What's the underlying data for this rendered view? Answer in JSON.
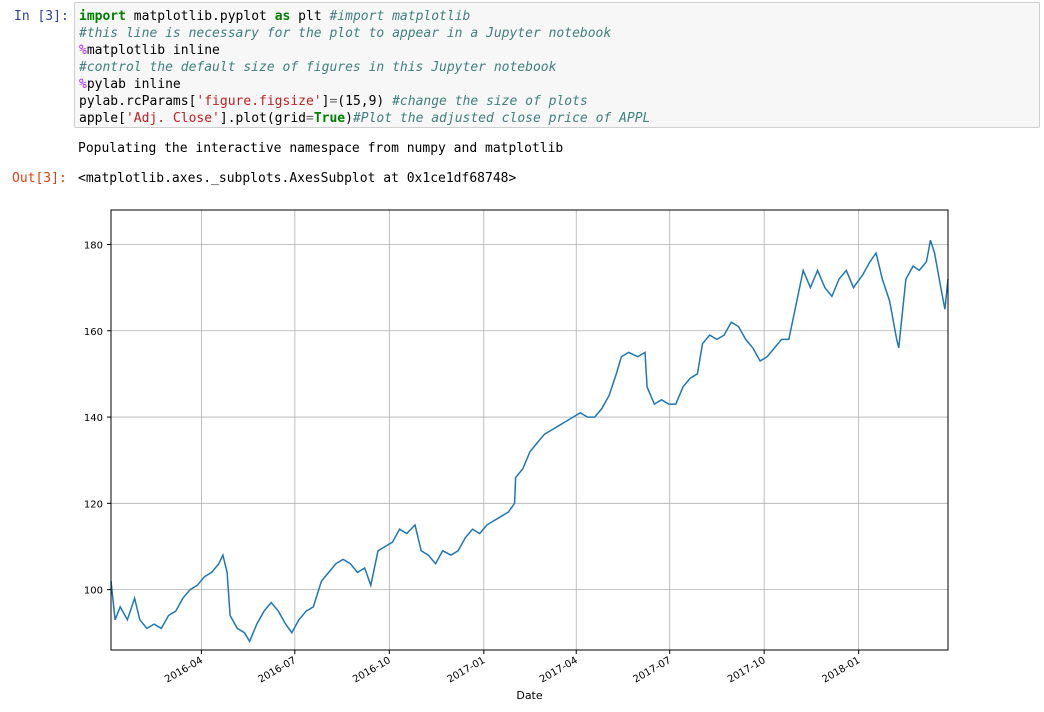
{
  "cells": {
    "in_prompt": "In [3]:",
    "out_prompt": "Out[3]:",
    "code": {
      "line1_kw": "import",
      "line1_mid": " matplotlib.pyplot ",
      "line1_as": "as",
      "line1_end": " plt ",
      "line1_comment": "#import matplotlib",
      "line2_comment": "#this line is necessary for the plot to appear in a Jupyter notebook",
      "line3_magic": "%",
      "line3_rest": "matplotlib inline",
      "line4_comment": "#control the default size of figures in this Jupyter notebook",
      "line5_magic": "%",
      "line5_rest": "pylab inline",
      "line6_a": "pylab.rcParams[",
      "line6_str": "'figure.figsize'",
      "line6_b": "]",
      "line6_eq": "=",
      "line6_c": "(15,9) ",
      "line6_comment": "#change the size of plots",
      "line7_a": "apple[",
      "line7_str": "'Adj. Close'",
      "line7_b": "].plot(grid",
      "line7_eq": "=",
      "line7_kw": "True",
      "line7_c": ")",
      "line7_comment": "#Plot the adjusted close price of APPL"
    },
    "stream_output": "Populating the interactive namespace from numpy and matplotlib",
    "out_repr": "<matplotlib.axes._subplots.AxesSubplot at 0x1ce1df68748>"
  },
  "chart_data": {
    "type": "line",
    "title": "",
    "xlabel": "Date",
    "ylabel": "",
    "grid": true,
    "line_color": "#1f77b4",
    "x_start": "2016-01-04",
    "x_end": "2018-03-29",
    "ylim": [
      86,
      188
    ],
    "yticks": [
      100,
      120,
      140,
      160,
      180
    ],
    "xticks": [
      {
        "label": "2016-04",
        "date": "2016-04-01"
      },
      {
        "label": "2016-07",
        "date": "2016-07-01"
      },
      {
        "label": "2016-10",
        "date": "2016-10-01"
      },
      {
        "label": "2017-01",
        "date": "2017-01-01"
      },
      {
        "label": "2017-04",
        "date": "2017-04-01"
      },
      {
        "label": "2017-07",
        "date": "2017-07-01"
      },
      {
        "label": "2017-10",
        "date": "2017-10-01"
      },
      {
        "label": "2018-01",
        "date": "2018-01-01"
      }
    ],
    "series": [
      {
        "name": "Adj. Close",
        "points": [
          [
            "2016-01-04",
            102
          ],
          [
            "2016-01-08",
            93
          ],
          [
            "2016-01-13",
            96
          ],
          [
            "2016-01-20",
            93
          ],
          [
            "2016-01-27",
            98
          ],
          [
            "2016-02-01",
            93
          ],
          [
            "2016-02-08",
            91
          ],
          [
            "2016-02-15",
            92
          ],
          [
            "2016-02-22",
            91
          ],
          [
            "2016-02-29",
            94
          ],
          [
            "2016-03-07",
            95
          ],
          [
            "2016-03-14",
            98
          ],
          [
            "2016-03-21",
            100
          ],
          [
            "2016-03-28",
            101
          ],
          [
            "2016-04-04",
            103
          ],
          [
            "2016-04-11",
            104
          ],
          [
            "2016-04-18",
            106
          ],
          [
            "2016-04-22",
            108
          ],
          [
            "2016-04-26",
            104
          ],
          [
            "2016-04-29",
            94
          ],
          [
            "2016-05-06",
            91
          ],
          [
            "2016-05-13",
            90
          ],
          [
            "2016-05-18",
            88
          ],
          [
            "2016-05-25",
            92
          ],
          [
            "2016-06-01",
            95
          ],
          [
            "2016-06-08",
            97
          ],
          [
            "2016-06-15",
            95
          ],
          [
            "2016-06-22",
            92
          ],
          [
            "2016-06-28",
            90
          ],
          [
            "2016-07-05",
            93
          ],
          [
            "2016-07-12",
            95
          ],
          [
            "2016-07-19",
            96
          ],
          [
            "2016-07-27",
            102
          ],
          [
            "2016-08-03",
            104
          ],
          [
            "2016-08-10",
            106
          ],
          [
            "2016-08-17",
            107
          ],
          [
            "2016-08-24",
            106
          ],
          [
            "2016-08-31",
            104
          ],
          [
            "2016-09-07",
            105
          ],
          [
            "2016-09-13",
            101
          ],
          [
            "2016-09-20",
            109
          ],
          [
            "2016-09-27",
            110
          ],
          [
            "2016-10-04",
            111
          ],
          [
            "2016-10-11",
            114
          ],
          [
            "2016-10-18",
            113
          ],
          [
            "2016-10-26",
            115
          ],
          [
            "2016-11-01",
            109
          ],
          [
            "2016-11-08",
            108
          ],
          [
            "2016-11-15",
            106
          ],
          [
            "2016-11-22",
            109
          ],
          [
            "2016-11-30",
            108
          ],
          [
            "2016-12-07",
            109
          ],
          [
            "2016-12-14",
            112
          ],
          [
            "2016-12-21",
            114
          ],
          [
            "2016-12-28",
            113
          ],
          [
            "2017-01-04",
            115
          ],
          [
            "2017-01-11",
            116
          ],
          [
            "2017-01-18",
            117
          ],
          [
            "2017-01-25",
            118
          ],
          [
            "2017-01-31",
            120
          ],
          [
            "2017-02-01",
            126
          ],
          [
            "2017-02-08",
            128
          ],
          [
            "2017-02-15",
            132
          ],
          [
            "2017-02-22",
            134
          ],
          [
            "2017-03-01",
            136
          ],
          [
            "2017-03-08",
            137
          ],
          [
            "2017-03-15",
            138
          ],
          [
            "2017-03-22",
            139
          ],
          [
            "2017-03-29",
            140
          ],
          [
            "2017-04-05",
            141
          ],
          [
            "2017-04-12",
            140
          ],
          [
            "2017-04-19",
            140
          ],
          [
            "2017-04-26",
            142
          ],
          [
            "2017-05-03",
            145
          ],
          [
            "2017-05-10",
            150
          ],
          [
            "2017-05-15",
            154
          ],
          [
            "2017-05-22",
            155
          ],
          [
            "2017-05-31",
            154
          ],
          [
            "2017-06-07",
            155
          ],
          [
            "2017-06-09",
            147
          ],
          [
            "2017-06-16",
            143
          ],
          [
            "2017-06-23",
            144
          ],
          [
            "2017-06-30",
            143
          ],
          [
            "2017-07-07",
            143
          ],
          [
            "2017-07-14",
            147
          ],
          [
            "2017-07-21",
            149
          ],
          [
            "2017-07-28",
            150
          ],
          [
            "2017-08-02",
            157
          ],
          [
            "2017-08-09",
            159
          ],
          [
            "2017-08-16",
            158
          ],
          [
            "2017-08-23",
            159
          ],
          [
            "2017-08-30",
            162
          ],
          [
            "2017-09-06",
            161
          ],
          [
            "2017-09-13",
            158
          ],
          [
            "2017-09-20",
            156
          ],
          [
            "2017-09-27",
            153
          ],
          [
            "2017-10-04",
            154
          ],
          [
            "2017-10-11",
            156
          ],
          [
            "2017-10-18",
            158
          ],
          [
            "2017-10-25",
            158
          ],
          [
            "2017-11-01",
            166
          ],
          [
            "2017-11-08",
            174
          ],
          [
            "2017-11-15",
            170
          ],
          [
            "2017-11-22",
            174
          ],
          [
            "2017-11-29",
            170
          ],
          [
            "2017-12-06",
            168
          ],
          [
            "2017-12-13",
            172
          ],
          [
            "2017-12-20",
            174
          ],
          [
            "2017-12-27",
            170
          ],
          [
            "2018-01-05",
            173
          ],
          [
            "2018-01-12",
            176
          ],
          [
            "2018-01-18",
            178
          ],
          [
            "2018-01-24",
            172
          ],
          [
            "2018-01-31",
            167
          ],
          [
            "2018-02-07",
            158
          ],
          [
            "2018-02-09",
            156
          ],
          [
            "2018-02-16",
            172
          ],
          [
            "2018-02-23",
            175
          ],
          [
            "2018-03-01",
            174
          ],
          [
            "2018-03-08",
            176
          ],
          [
            "2018-03-12",
            181
          ],
          [
            "2018-03-16",
            178
          ],
          [
            "2018-03-22",
            170
          ],
          [
            "2018-03-26",
            165
          ],
          [
            "2018-03-29",
            172
          ]
        ]
      }
    ]
  }
}
